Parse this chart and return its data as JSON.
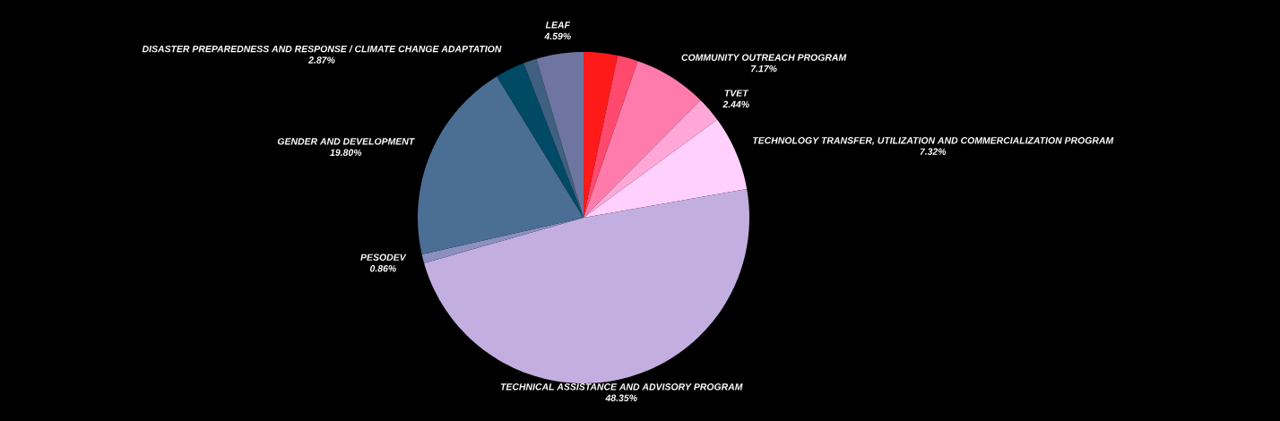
{
  "chart_data": {
    "type": "pie",
    "categories": [
      null,
      null,
      "COMMUNITY OUTREACH PROGRAM",
      "TVET",
      "TECHNOLOGY TRANSFER, UTILIZATION AND COMMERCIALIZATION PROGRAM",
      "TECHNICAL ASSISTANCE AND ADVISORY PROGRAM",
      "PESODEV",
      "GENDER AND DEVELOPMENT",
      "DISASTER PREPAREDNESS AND RESPONSE / CLIMATE CHANGE ADAPTATION",
      null,
      "LEAF"
    ],
    "values": [
      3.3,
      2.0,
      7.17,
      2.44,
      7.32,
      48.35,
      0.86,
      19.8,
      2.87,
      1.3,
      4.59
    ],
    "value_labels": [
      null,
      null,
      "7.17%",
      "2.44%",
      "7.32%",
      "48.35%",
      "0.86%",
      "19.80%",
      "2.87%",
      null,
      "4.59%"
    ],
    "colors": [
      "#ff1a1a",
      "#ff4a6e",
      "#ff7bac",
      "#ffa8d8",
      "#ffd0fc",
      "#c3aee0",
      "#8c8fc0",
      "#4a6e94",
      "#004a66",
      "#3f6080",
      "#6e75a0"
    ]
  }
}
